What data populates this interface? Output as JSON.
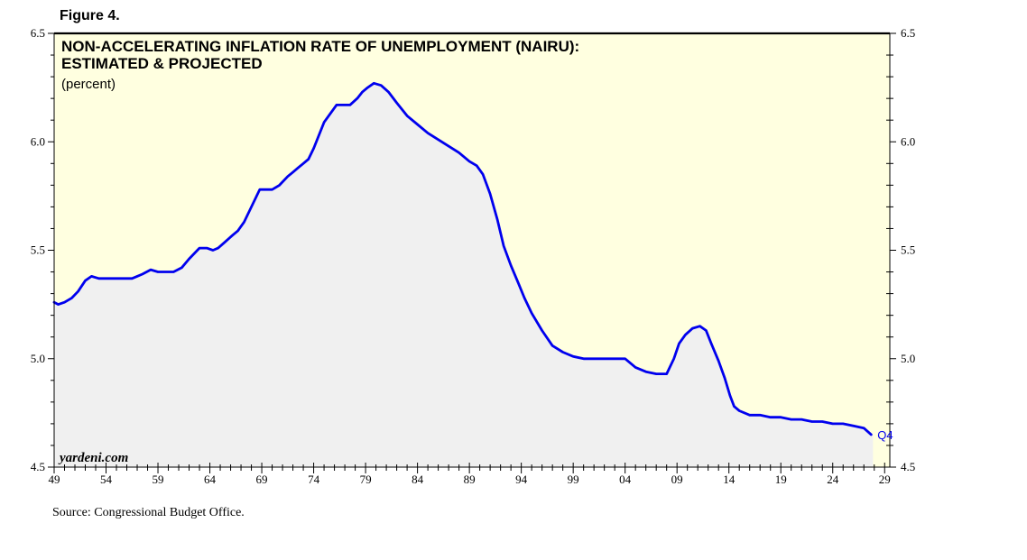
{
  "figure_label": "Figure 4.",
  "source": "Source: Congressional Budget Office.",
  "watermark": "yardeni.com",
  "colors": {
    "plot_background": "#ffffe0",
    "area_fill": "#f0f0f0",
    "line": "#0000ee",
    "annotation": "#0000ee"
  },
  "chart_data": {
    "type": "area",
    "title": "NON-ACCELERATING INFLATION RATE OF UNEMPLOYMENT (NAIRU):",
    "title_line2": "ESTIMATED & PROJECTED",
    "subtitle": "(percent)",
    "xlabel": "",
    "ylabel": "",
    "xlim": [
      1949,
      2029.5
    ],
    "ylim": [
      4.5,
      6.5
    ],
    "x_ticks": [
      1949,
      1954,
      1959,
      1964,
      1969,
      1974,
      1979,
      1984,
      1989,
      1994,
      1999,
      2004,
      2009,
      2014,
      2019,
      2024,
      2029
    ],
    "x_tick_labels": [
      "49",
      "54",
      "59",
      "64",
      "69",
      "74",
      "79",
      "84",
      "89",
      "94",
      "99",
      "04",
      "09",
      "14",
      "19",
      "24",
      "29"
    ],
    "y_ticks": [
      4.5,
      5.0,
      5.5,
      6.0,
      6.5
    ],
    "y_tick_labels": [
      "4.5",
      "5.0",
      "5.5",
      "6.0",
      "6.5"
    ],
    "grid": false,
    "legend": "none",
    "series": [
      {
        "x": [
          1949.0,
          1949.4,
          1950.0,
          1950.7,
          1951.3,
          1952.0,
          1952.6,
          1953.3,
          1954.0,
          1956.5,
          1957.0,
          1957.5,
          1958.3,
          1959.0,
          1960.5,
          1961.3,
          1962.0,
          1963.0,
          1963.7,
          1964.3,
          1964.8,
          1965.5,
          1966.2,
          1966.7,
          1967.3,
          1968.8,
          1969.3,
          1970.0,
          1970.7,
          1971.5,
          1972.0,
          1972.5,
          1973.0,
          1973.5,
          1974.0,
          1975.0,
          1976.2,
          1976.8,
          1977.5,
          1978.2,
          1978.7,
          1979.2,
          1979.8,
          1980.5,
          1981.2,
          1982.0,
          1983.0,
          1984.0,
          1985.0,
          1986.0,
          1987.0,
          1988.0,
          1989.0,
          1989.7,
          1990.3,
          1991.0,
          1991.7,
          1992.3,
          1993.0,
          1993.7,
          1994.3,
          1995.0,
          1996.0,
          1997.0,
          1998.0,
          1999.0,
          2000.0,
          2001.0,
          2002.0,
          2003.0,
          2004.0,
          2004.5,
          2005.0,
          2006.0,
          2007.0,
          2008.0,
          2008.7,
          2009.2,
          2009.8,
          2010.5,
          2011.2,
          2011.8,
          2012.3,
          2013.0,
          2013.6,
          2014.1,
          2014.5,
          2015.0,
          2016.0,
          2017.0,
          2018.0,
          2019.0,
          2020.0,
          2021.0,
          2022.0,
          2023.0,
          2024.0,
          2025.0,
          2026.0,
          2027.0,
          2027.7
        ],
        "y": [
          5.26,
          5.25,
          5.26,
          5.28,
          5.31,
          5.36,
          5.38,
          5.37,
          5.37,
          5.37,
          5.38,
          5.39,
          5.41,
          5.4,
          5.4,
          5.42,
          5.46,
          5.51,
          5.51,
          5.5,
          5.51,
          5.54,
          5.57,
          5.59,
          5.63,
          5.78,
          5.78,
          5.78,
          5.8,
          5.84,
          5.86,
          5.88,
          5.9,
          5.92,
          5.97,
          6.09,
          6.17,
          6.17,
          6.17,
          6.2,
          6.23,
          6.25,
          6.27,
          6.26,
          6.23,
          6.18,
          6.12,
          6.08,
          6.04,
          6.01,
          5.98,
          5.95,
          5.91,
          5.89,
          5.85,
          5.76,
          5.64,
          5.52,
          5.43,
          5.35,
          5.28,
          5.21,
          5.13,
          5.06,
          5.03,
          5.01,
          5.0,
          5.0,
          5.0,
          5.0,
          5.0,
          4.98,
          4.96,
          4.94,
          4.93,
          4.93,
          5.0,
          5.07,
          5.11,
          5.14,
          5.15,
          5.13,
          5.07,
          4.99,
          4.91,
          4.83,
          4.78,
          4.76,
          4.74,
          4.74,
          4.73,
          4.73,
          4.72,
          4.72,
          4.71,
          4.71,
          4.7,
          4.7,
          4.69,
          4.68,
          4.65
        ]
      }
    ],
    "annotations": [
      {
        "text": "Q4",
        "x": 2027.7,
        "y": 4.65
      }
    ]
  }
}
